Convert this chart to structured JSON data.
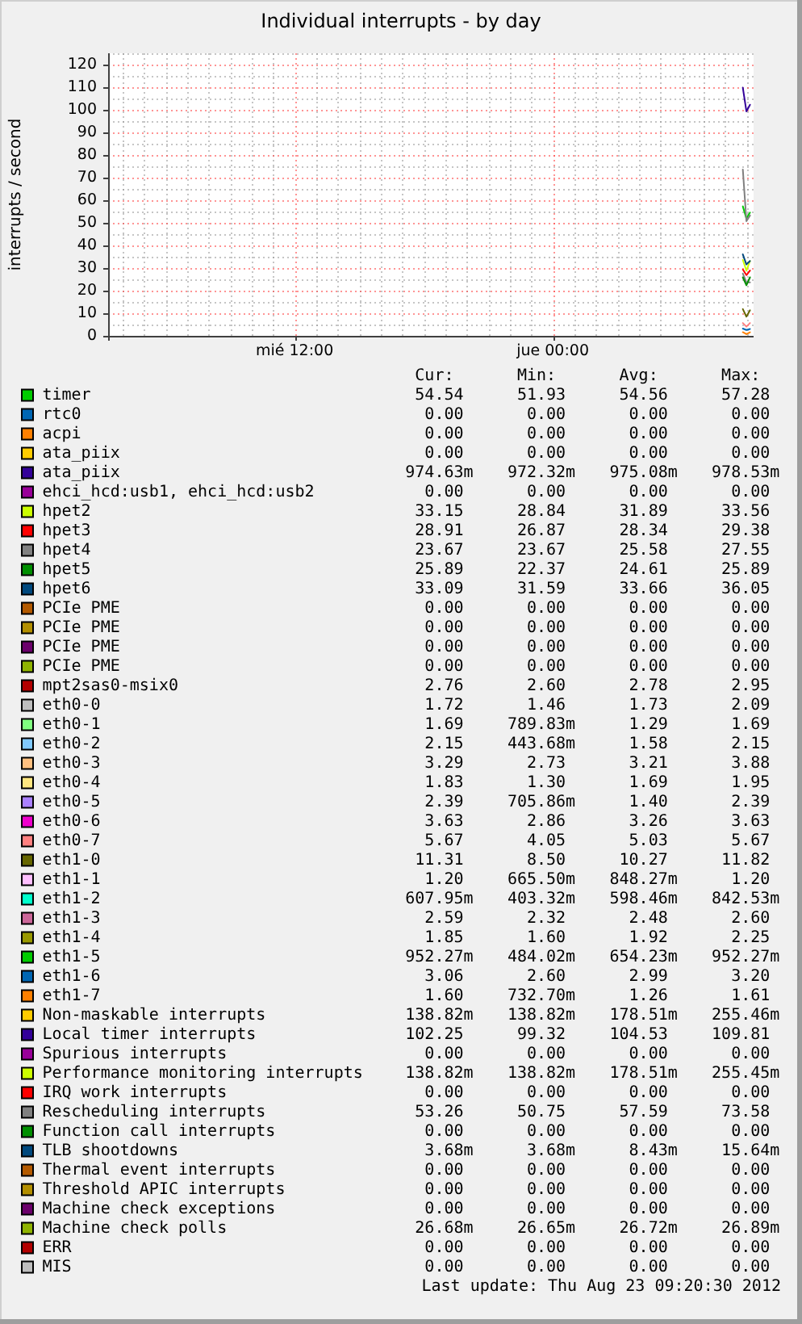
{
  "chart_data": {
    "type": "line",
    "title": "Individual interrupts - by day",
    "ylabel": "interrupts / second",
    "x": [
      "2012-08-23T08:50",
      "2012-08-23T09:00",
      "2012-08-23T09:10"
    ],
    "xlim": [
      "2012-08-22T03:20",
      "2012-08-23T09:20"
    ],
    "xticks": [
      {
        "value": "2012-08-22T04:00",
        "label": null
      },
      {
        "value": "2012-08-22T05:00",
        "label": null
      },
      {
        "value": "2012-08-22T06:00",
        "label": null
      },
      {
        "value": "2012-08-22T07:00",
        "label": null
      },
      {
        "value": "2012-08-22T08:00",
        "label": null
      },
      {
        "value": "2012-08-22T09:00",
        "label": null
      },
      {
        "value": "2012-08-22T10:00",
        "label": null
      },
      {
        "value": "2012-08-22T11:00",
        "label": null
      },
      {
        "value": "2012-08-22T12:00",
        "label": "mié 12:00"
      },
      {
        "value": "2012-08-22T13:00",
        "label": null
      },
      {
        "value": "2012-08-22T14:00",
        "label": null
      },
      {
        "value": "2012-08-22T15:00",
        "label": null
      },
      {
        "value": "2012-08-22T16:00",
        "label": null
      },
      {
        "value": "2012-08-22T17:00",
        "label": null
      },
      {
        "value": "2012-08-22T18:00",
        "label": null
      },
      {
        "value": "2012-08-22T19:00",
        "label": null
      },
      {
        "value": "2012-08-22T20:00",
        "label": null
      },
      {
        "value": "2012-08-22T21:00",
        "label": null
      },
      {
        "value": "2012-08-22T22:00",
        "label": null
      },
      {
        "value": "2012-08-22T23:00",
        "label": null
      },
      {
        "value": "2012-08-23T00:00",
        "label": "jue 00:00"
      },
      {
        "value": "2012-08-23T01:00",
        "label": null
      },
      {
        "value": "2012-08-23T02:00",
        "label": null
      },
      {
        "value": "2012-08-23T03:00",
        "label": null
      },
      {
        "value": "2012-08-23T04:00",
        "label": null
      },
      {
        "value": "2012-08-23T05:00",
        "label": null
      },
      {
        "value": "2012-08-23T06:00",
        "label": null
      },
      {
        "value": "2012-08-23T07:00",
        "label": null
      },
      {
        "value": "2012-08-23T08:00",
        "label": null
      },
      {
        "value": "2012-08-23T09:00",
        "label": null
      }
    ],
    "ylim": [
      0,
      125
    ],
    "yticks": [
      0,
      {
        "value": 5,
        "label": null
      },
      10,
      {
        "value": 15,
        "label": null
      },
      20,
      {
        "value": 25,
        "label": null
      },
      30,
      {
        "value": 35,
        "label": null
      },
      40,
      {
        "value": 45,
        "label": null
      },
      50,
      {
        "value": 55,
        "label": null
      },
      60,
      {
        "value": 65,
        "label": null
      },
      70,
      {
        "value": 75,
        "label": null
      },
      80,
      {
        "value": 85,
        "label": null
      },
      90,
      {
        "value": 95,
        "label": null
      },
      100,
      {
        "value": 105,
        "label": null
      },
      110,
      {
        "value": 115,
        "label": null
      },
      120,
      {
        "value": 125,
        "label": null
      }
    ],
    "grid": true,
    "legend": "bottom",
    "series": [
      {
        "name": "timer",
        "color": "#00cc00",
        "values": [
          57.28,
          51.93,
          54.54
        ]
      },
      {
        "name": "rtc0",
        "color": "#0066b3",
        "values": [
          null,
          null,
          null
        ]
      },
      {
        "name": "acpi",
        "color": "#ff8000",
        "values": [
          null,
          null,
          null
        ]
      },
      {
        "name": "ata_piix",
        "color": "#ffcc00",
        "values": [
          null,
          null,
          null
        ]
      },
      {
        "name": "ata_piix",
        "color": "#330099",
        "values": [
          null,
          null,
          null
        ]
      },
      {
        "name": "ehci_hcd:usb1, ehci_hcd:usb2",
        "color": "#990099",
        "values": [
          null,
          null,
          null
        ]
      },
      {
        "name": "hpet2",
        "color": "#ccff00",
        "values": [
          33.56,
          28.84,
          33.15
        ]
      },
      {
        "name": "hpet3",
        "color": "#ff0000",
        "values": [
          29.38,
          26.87,
          28.91
        ]
      },
      {
        "name": "hpet4",
        "color": "#808080",
        "values": [
          27.55,
          23.67,
          23.67
        ]
      },
      {
        "name": "hpet5",
        "color": "#008f00",
        "values": [
          25.89,
          22.37,
          25.89
        ]
      },
      {
        "name": "hpet6",
        "color": "#00487d",
        "values": [
          36.05,
          31.59,
          33.09
        ]
      },
      {
        "name": "PCIe PME",
        "color": "#b35a00",
        "values": [
          null,
          null,
          null
        ]
      },
      {
        "name": "PCIe PME",
        "color": "#b38f00",
        "values": [
          null,
          null,
          null
        ]
      },
      {
        "name": "PCIe PME",
        "color": "#6b006b",
        "values": [
          null,
          null,
          null
        ]
      },
      {
        "name": "PCIe PME",
        "color": "#8fb300",
        "values": [
          null,
          null,
          null
        ]
      },
      {
        "name": "mpt2sas0-msix0",
        "color": "#b30000",
        "values": [
          null,
          null,
          null
        ]
      },
      {
        "name": "eth0-0",
        "color": "#bebebe",
        "values": [
          null,
          null,
          null
        ]
      },
      {
        "name": "eth0-1",
        "color": "#80ff80",
        "values": [
          null,
          null,
          null
        ]
      },
      {
        "name": "eth0-2",
        "color": "#80c9ff",
        "values": [
          null,
          null,
          null
        ]
      },
      {
        "name": "eth0-3",
        "color": "#ffc080",
        "values": [
          null,
          null,
          null
        ]
      },
      {
        "name": "eth0-4",
        "color": "#ffe680",
        "values": [
          null,
          null,
          null
        ]
      },
      {
        "name": "eth0-5",
        "color": "#aa80ff",
        "values": [
          null,
          null,
          null
        ]
      },
      {
        "name": "eth0-6",
        "color": "#ee00cc",
        "values": [
          null,
          null,
          null
        ]
      },
      {
        "name": "eth0-7",
        "color": "#ff8080",
        "values": [
          5.67,
          4.05,
          5.67
        ]
      },
      {
        "name": "eth1-0",
        "color": "#666600",
        "values": [
          11.82,
          8.5,
          11.31
        ]
      },
      {
        "name": "eth1-1",
        "color": "#ffbfff",
        "values": [
          null,
          null,
          null
        ]
      },
      {
        "name": "eth1-2",
        "color": "#00ffcc",
        "values": [
          null,
          null,
          null
        ]
      },
      {
        "name": "eth1-3",
        "color": "#cc6699",
        "values": [
          null,
          null,
          null
        ]
      },
      {
        "name": "eth1-4",
        "color": "#999900",
        "values": [
          null,
          null,
          null
        ]
      },
      {
        "name": "eth1-5",
        "color": "#00cc00",
        "values": [
          null,
          null,
          null
        ]
      },
      {
        "name": "eth1-6",
        "color": "#0066b3",
        "values": [
          3.2,
          2.6,
          3.06
        ]
      },
      {
        "name": "eth1-7",
        "color": "#ff8000",
        "values": [
          1.61,
          0.7327,
          1.6
        ]
      },
      {
        "name": "Non-maskable interrupts",
        "color": "#ffcc00",
        "values": [
          null,
          null,
          null
        ]
      },
      {
        "name": "Local timer interrupts",
        "color": "#330099",
        "values": [
          109.81,
          99.32,
          102.25
        ]
      },
      {
        "name": "Spurious interrupts",
        "color": "#990099",
        "values": [
          null,
          null,
          null
        ]
      },
      {
        "name": "Performance monitoring interrupts",
        "color": "#ccff00",
        "values": [
          null,
          null,
          null
        ]
      },
      {
        "name": "IRQ work interrupts",
        "color": "#ff0000",
        "values": [
          null,
          null,
          null
        ]
      },
      {
        "name": "Rescheduling interrupts",
        "color": "#808080",
        "values": [
          73.58,
          50.75,
          53.26
        ]
      },
      {
        "name": "Function call interrupts",
        "color": "#008f00",
        "values": [
          null,
          null,
          null
        ]
      },
      {
        "name": "TLB shootdowns",
        "color": "#00487d",
        "values": [
          null,
          null,
          null
        ]
      },
      {
        "name": "Thermal event interrupts",
        "color": "#b35a00",
        "values": [
          null,
          null,
          null
        ]
      },
      {
        "name": "Threshold APIC interrupts",
        "color": "#b38f00",
        "values": [
          null,
          null,
          null
        ]
      },
      {
        "name": "Machine check exceptions",
        "color": "#6b006b",
        "values": [
          null,
          null,
          null
        ]
      },
      {
        "name": "Machine check polls",
        "color": "#8fb300",
        "values": [
          null,
          null,
          null
        ]
      },
      {
        "name": "ERR",
        "color": "#b30000",
        "values": [
          null,
          null,
          null
        ]
      },
      {
        "name": "MIS",
        "color": "#bebebe",
        "values": [
          null,
          null,
          null
        ]
      }
    ],
    "annotations": [
      "Cur:",
      "Min:",
      "Avg:",
      "Max:",
      "54.54",
      "51.93",
      "54.56",
      "57.28",
      "0.00",
      "0.00",
      "0.00",
      "0.00",
      "0.00",
      "0.00",
      "0.00",
      "0.00",
      "0.00",
      "0.00",
      "0.00",
      "0.00",
      "974.63m",
      "972.32m",
      "975.08m",
      "978.53m",
      "0.00",
      "0.00",
      "0.00",
      "0.00",
      "33.15",
      "28.84",
      "31.89",
      "33.56",
      "28.91",
      "26.87",
      "28.34",
      "29.38",
      "23.67",
      "23.67",
      "25.58",
      "27.55",
      "25.89",
      "22.37",
      "24.61",
      "25.89",
      "33.09",
      "31.59",
      "33.66",
      "36.05",
      "0.00",
      "0.00",
      "0.00",
      "0.00",
      "0.00",
      "0.00",
      "0.00",
      "0.00",
      "0.00",
      "0.00",
      "0.00",
      "0.00",
      "0.00",
      "0.00",
      "0.00",
      "0.00",
      "2.76",
      "2.60",
      "2.78",
      "2.95",
      "1.72",
      "1.46",
      "1.73",
      "2.09",
      "1.69",
      "789.83m",
      "1.29",
      "1.69",
      "2.15",
      "443.68m",
      "1.58",
      "2.15",
      "3.29",
      "2.73",
      "3.21",
      "3.88",
      "1.83",
      "1.30",
      "1.69",
      "1.95",
      "2.39",
      "705.86m",
      "1.40",
      "2.39",
      "3.63",
      "2.86",
      "3.26",
      "3.63",
      "5.67",
      "4.05",
      "5.03",
      "5.67",
      "11.31",
      "8.50",
      "10.27",
      "11.82",
      "1.20",
      "665.50m",
      "848.27m",
      "1.20",
      "607.95m",
      "403.32m",
      "598.46m",
      "842.53m",
      "2.59",
      "2.32",
      "2.48",
      "2.60",
      "1.85",
      "1.60",
      "1.92",
      "2.25",
      "952.27m",
      "484.02m",
      "654.23m",
      "952.27m",
      "3.06",
      "2.60",
      "2.99",
      "3.20",
      "1.60",
      "732.70m",
      "1.26",
      "1.61",
      "138.82m",
      "138.82m",
      "178.51m",
      "255.46m",
      "102.25",
      "99.32",
      "104.53",
      "109.81",
      "0.00",
      "0.00",
      "0.00",
      "0.00",
      "138.82m",
      "138.82m",
      "178.51m",
      "255.45m",
      "0.00",
      "0.00",
      "0.00",
      "0.00",
      "53.26",
      "50.75",
      "57.59",
      "73.58",
      "0.00",
      "0.00",
      "0.00",
      "0.00",
      "3.68m",
      "3.68m",
      "8.43m",
      "15.64m",
      "0.00",
      "0.00",
      "0.00",
      "0.00",
      "0.00",
      "0.00",
      "0.00",
      "0.00",
      "0.00",
      "0.00",
      "0.00",
      "0.00",
      "26.68m",
      "26.65m",
      "26.72m",
      "26.89m",
      "0.00",
      "0.00",
      "0.00",
      "0.00",
      "0.00",
      "0.00",
      "0.00",
      "0.00",
      "Last update: Thu Aug 23 09:20:30 2012"
    ]
  }
}
